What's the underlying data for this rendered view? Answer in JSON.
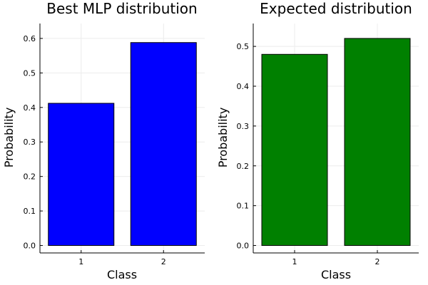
{
  "figure": {
    "background": "#ffffff"
  },
  "chart_data": [
    {
      "type": "bar",
      "title": "Best MLP distribution",
      "xlabel": "Class",
      "ylabel": "Probability",
      "categories": [
        "1",
        "2"
      ],
      "values": [
        0.412,
        0.588
      ],
      "bar_color": "#0000ff",
      "ylim": [
        0,
        0.6
      ],
      "yticks": [
        0.0,
        0.1,
        0.2,
        0.3,
        0.4,
        0.5,
        0.6
      ],
      "ytick_labels": [
        "0.0",
        "0.1",
        "0.2",
        "0.3",
        "0.4",
        "0.5",
        "0.6"
      ],
      "grid": true,
      "legend": "none"
    },
    {
      "type": "bar",
      "title": "Expected distribution",
      "xlabel": "Class",
      "ylabel": "Probability",
      "categories": [
        "1",
        "2"
      ],
      "values": [
        0.48,
        0.52
      ],
      "bar_color": "#008000",
      "ylim": [
        0,
        0.52
      ],
      "yticks": [
        0.0,
        0.1,
        0.2,
        0.3,
        0.4,
        0.5
      ],
      "ytick_labels": [
        "0.0",
        "0.1",
        "0.2",
        "0.3",
        "0.4",
        "0.5"
      ],
      "grid": true,
      "legend": "none"
    }
  ]
}
